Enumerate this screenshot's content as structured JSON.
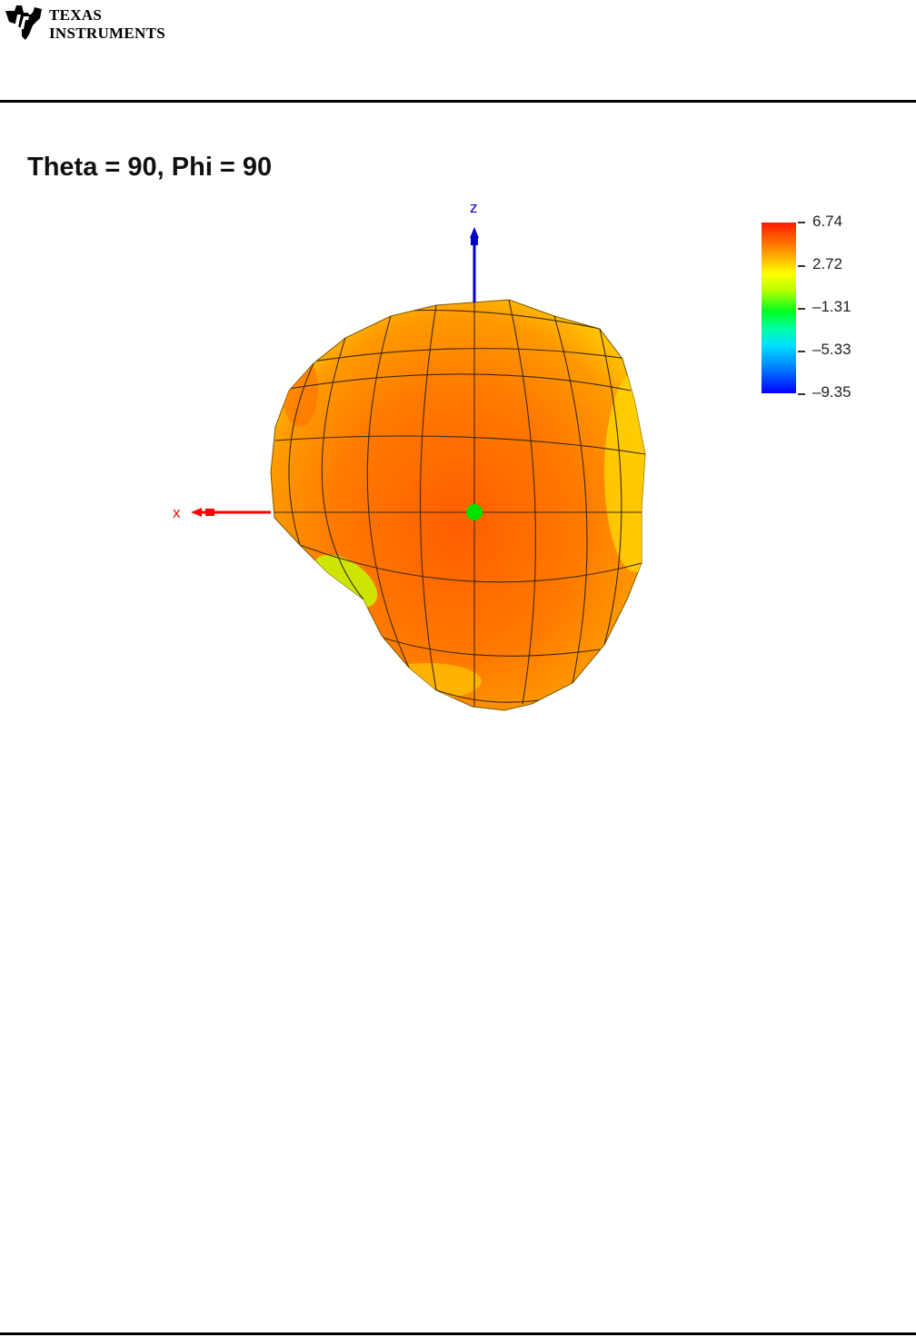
{
  "header": {
    "company_line1": "TEXAS",
    "company_line2": "INSTRUMENTS",
    "logo_icon": "ti-logo-icon"
  },
  "chart_data": {
    "type": "surface3d",
    "title": "Theta = 90, Phi = 90",
    "axes": {
      "x_label": "x",
      "z_label": "z"
    },
    "colorbar": {
      "ticks": [
        "6.74",
        "2.72",
        "–1.31",
        "–5.33",
        "–9.35"
      ],
      "values": [
        6.74,
        2.72,
        -1.31,
        -5.33,
        -9.35
      ],
      "colormap": [
        "#ff1a00",
        "#ffff00",
        "#00ff20",
        "#00e0ff",
        "#0000ff"
      ]
    },
    "colors": {
      "surface_main": "#ff6a00",
      "surface_edge": "#ffcc00",
      "x_axis": "#ff0000",
      "z_axis": "#0000cc",
      "origin": "#00e000",
      "grid": "#3a2a10"
    }
  }
}
